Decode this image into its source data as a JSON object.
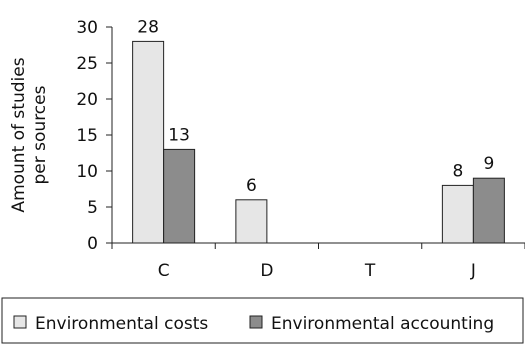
{
  "chart_data": {
    "type": "bar",
    "categories": [
      "C",
      "D",
      "T",
      "J"
    ],
    "series": [
      {
        "name": "Environmental costs",
        "values": [
          28,
          6,
          null,
          8
        ],
        "color": "#e6e6e6"
      },
      {
        "name": "Environmental accounting",
        "values": [
          13,
          null,
          null,
          9
        ],
        "color": "#8c8c8c"
      }
    ],
    "data_labels": [
      [
        "28",
        "6",
        "",
        "8"
      ],
      [
        "13",
        "",
        "",
        "9"
      ]
    ],
    "ylabel_lines": [
      "Amount of studies",
      "per sources"
    ],
    "yticks": [
      "0",
      "5",
      "10",
      "15",
      "20",
      "25",
      "30"
    ],
    "ylim": [
      0,
      30
    ],
    "grid": false,
    "legend_position": "bottom"
  }
}
